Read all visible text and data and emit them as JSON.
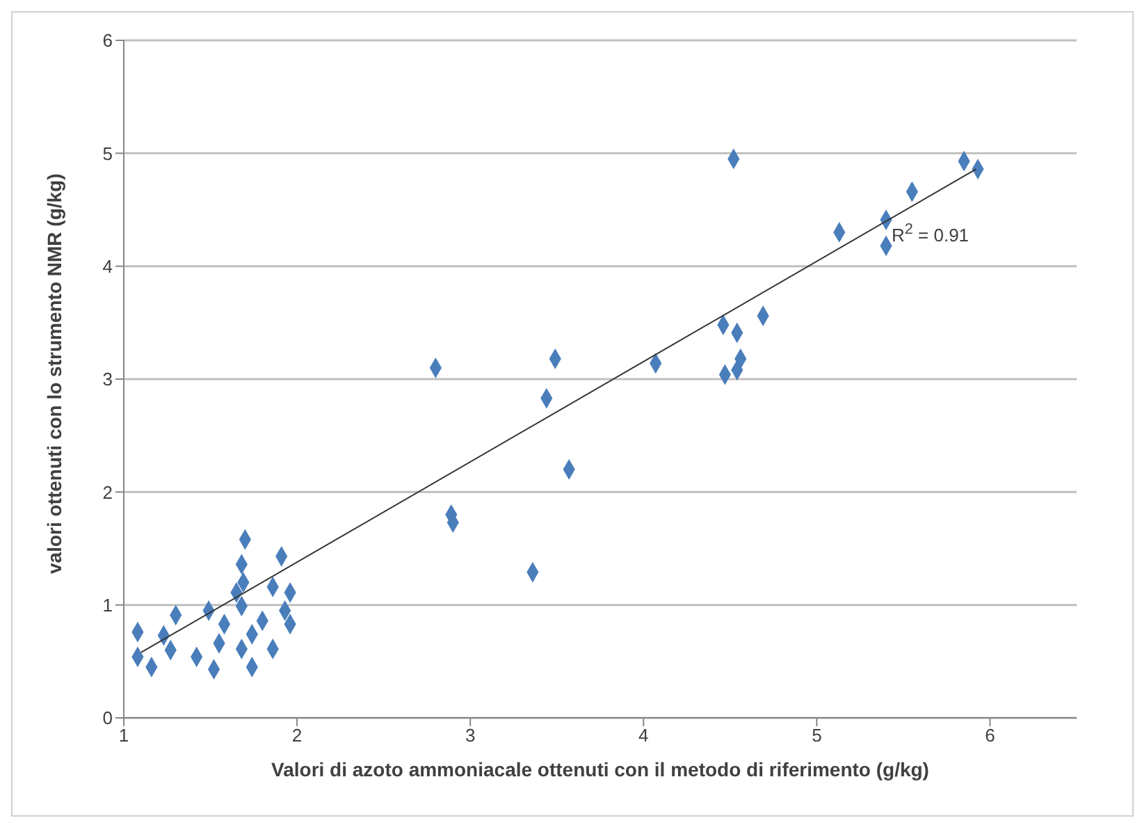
{
  "chart_data": {
    "type": "scatter",
    "xlabel": "Valori di azoto ammoniacale ottenuti con il metodo di riferimento (g/kg)",
    "ylabel": "valori ottenuti con lo strumento NMR (g/kg)",
    "xlim": [
      1,
      6.5
    ],
    "xticks": [
      1,
      2,
      3,
      4,
      5,
      6
    ],
    "ylim": [
      0,
      6
    ],
    "yticks": [
      0,
      1,
      2,
      3,
      4,
      5,
      6
    ],
    "grid": "y",
    "marker": "diamond",
    "annotations": [
      "R$^{2}$ = 0.91"
    ],
    "series": [
      {
        "color": "#4a7ebb",
        "x": [
          4.52,
          5.85,
          5.93,
          5.55,
          5.13,
          5.4,
          5.4,
          4.69,
          4.46,
          4.54,
          4.56,
          4.47,
          4.54,
          4.07,
          3.49,
          2.8,
          3.44,
          3.57,
          2.89,
          2.9,
          3.36,
          1.7,
          1.91,
          1.68,
          1.69,
          1.86,
          1.96,
          1.93,
          1.96,
          1.68,
          1.49,
          1.58,
          1.3,
          1.08,
          1.23,
          1.74,
          1.86,
          1.68,
          1.74,
          1.42,
          1.52,
          1.08,
          1.16,
          1.27,
          1.55,
          1.8,
          1.65
        ],
        "values": [
          4.95,
          4.93,
          4.86,
          4.66,
          4.3,
          4.41,
          4.18,
          3.56,
          3.48,
          3.41,
          3.18,
          3.04,
          3.08,
          3.14,
          3.18,
          3.1,
          2.83,
          2.2,
          1.8,
          1.73,
          1.29,
          1.58,
          1.43,
          1.36,
          1.2,
          1.16,
          1.11,
          0.95,
          0.83,
          0.99,
          0.95,
          0.83,
          0.91,
          0.76,
          0.73,
          0.74,
          0.61,
          0.61,
          0.45,
          0.54,
          0.43,
          0.54,
          0.45,
          0.6,
          0.66,
          0.86,
          1.11
        ]
      },
      {
        "type": "line",
        "marker": "none",
        "color": "#333333",
        "x": [
          1.1,
          5.92
        ],
        "values": [
          0.58,
          4.86
        ]
      }
    ]
  }
}
